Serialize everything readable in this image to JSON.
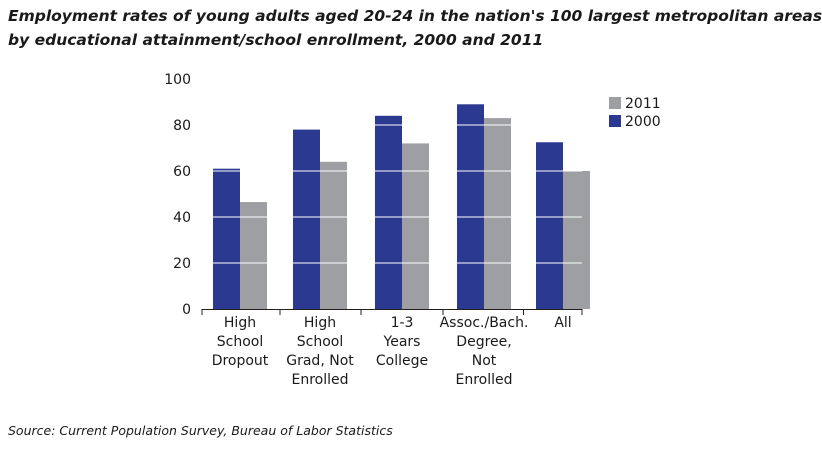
{
  "title_lines": [
    "Employment rates of young adults aged 20-24 in the nation's 100 largest metropolitan areas",
    "by educational attainment/school enrollment, 2000 and 2011"
  ],
  "source": "Source: Current Population Survey, Bureau of Labor Statistics",
  "colors": {
    "2000": "#2b3990",
    "2011": "#9d9fa2",
    "gridline": "#ffffff",
    "axis": "#231f20"
  },
  "chart_data": {
    "type": "bar",
    "categories": [
      [
        "High",
        "School",
        "Dropout"
      ],
      [
        "High",
        "School",
        "Grad, Not",
        "Enrolled"
      ],
      [
        "1-3",
        "Years",
        "College"
      ],
      [
        "Assoc./Bach.",
        "Degree,",
        "Not",
        "Enrolled"
      ],
      [
        "All"
      ]
    ],
    "series": [
      {
        "name": "2000",
        "values": [
          61,
          78,
          84,
          89,
          72.5
        ]
      },
      {
        "name": "2011",
        "values": [
          46.5,
          64,
          72,
          83,
          60
        ]
      }
    ],
    "ylim": [
      0,
      100
    ],
    "yticks": [
      0,
      20,
      40,
      60,
      80,
      100
    ],
    "legend": {
      "position": "top-right",
      "order": [
        "2011",
        "2000"
      ]
    },
    "grid": "white gridlines drawn across bars"
  }
}
